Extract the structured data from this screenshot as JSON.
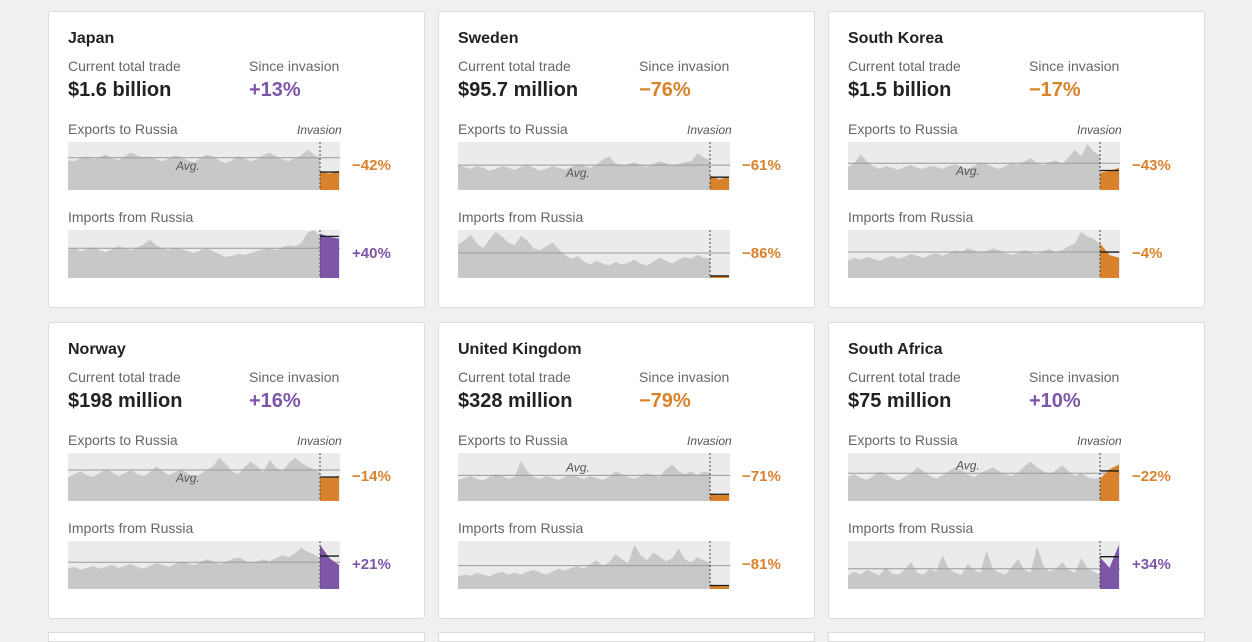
{
  "labels": {
    "current_total_trade": "Current total trade",
    "since_invasion": "Since invasion",
    "exports_to_russia": "Exports to Russia",
    "imports_from_russia": "Imports from Russia",
    "invasion": "Invasion",
    "avg": "Avg."
  },
  "colors": {
    "negative": "#d9822b",
    "positive": "#7d56a7",
    "history_area": "#c8c8c8",
    "plot_background": "#ebebeb",
    "average_line": "#9a9a9a"
  },
  "chart_data": [
    {
      "type": "area",
      "country": "Japan",
      "total_trade": "$1.6 billion",
      "since_invasion": "+13%",
      "exports": {
        "change": "−42%",
        "shape": [
          0.62,
          0.6,
          0.66,
          0.7,
          0.64,
          0.68,
          0.74,
          0.66,
          0.62,
          0.7,
          0.78,
          0.72,
          0.66,
          0.7,
          0.64,
          0.6,
          0.66,
          0.72,
          0.68,
          0.62,
          0.58,
          0.66,
          0.74,
          0.7,
          0.62,
          0.56,
          0.62,
          0.7,
          0.66,
          0.6,
          0.64,
          0.72,
          0.78,
          0.7,
          0.64,
          0.6,
          0.66,
          0.72,
          0.84,
          0.74,
          0.66
        ],
        "recent": [
          0.38,
          0.34,
          0.4
        ],
        "avg_label_side": "below"
      },
      "imports": {
        "change": "+40%",
        "shape": [
          0.58,
          0.62,
          0.56,
          0.6,
          0.64,
          0.58,
          0.54,
          0.6,
          0.66,
          0.62,
          0.58,
          0.64,
          0.7,
          0.8,
          0.68,
          0.62,
          0.58,
          0.64,
          0.6,
          0.56,
          0.52,
          0.58,
          0.62,
          0.56,
          0.5,
          0.44,
          0.46,
          0.5,
          0.48,
          0.52,
          0.56,
          0.6,
          0.62,
          0.58,
          0.64,
          0.68,
          0.66,
          0.72,
          0.94,
          1.0,
          0.88
        ],
        "recent": [
          0.92,
          0.86,
          0.82
        ]
      }
    },
    {
      "type": "area",
      "country": "Sweden",
      "total_trade": "$95.7 million",
      "since_invasion": "−76%",
      "exports": {
        "change": "−61%",
        "shape": [
          0.52,
          0.48,
          0.44,
          0.5,
          0.46,
          0.4,
          0.44,
          0.5,
          0.46,
          0.42,
          0.48,
          0.52,
          0.46,
          0.4,
          0.44,
          0.5,
          0.46,
          0.42,
          0.48,
          0.54,
          0.5,
          0.46,
          0.52,
          0.64,
          0.7,
          0.56,
          0.5,
          0.54,
          0.58,
          0.52,
          0.48,
          0.54,
          0.6,
          0.56,
          0.5,
          0.54,
          0.58,
          0.6,
          0.76,
          0.68,
          0.62
        ],
        "recent": [
          0.3,
          0.22,
          0.28
        ],
        "avg_label_side": "below"
      },
      "imports": {
        "change": "−86%",
        "shape": [
          0.7,
          0.78,
          0.9,
          0.72,
          0.62,
          0.8,
          0.96,
          0.86,
          0.74,
          0.68,
          0.88,
          0.78,
          0.62,
          0.58,
          0.66,
          0.74,
          0.6,
          0.48,
          0.4,
          0.46,
          0.34,
          0.28,
          0.36,
          0.3,
          0.26,
          0.34,
          0.28,
          0.32,
          0.38,
          0.3,
          0.26,
          0.34,
          0.42,
          0.36,
          0.3,
          0.38,
          0.44,
          0.4,
          0.48,
          0.42,
          0.4
        ],
        "recent": [
          0.04,
          0.04,
          0.05
        ]
      }
    },
    {
      "type": "area",
      "country": "South Korea",
      "total_trade": "$1.5 billion",
      "since_invasion": "−17%",
      "exports": {
        "change": "−43%",
        "shape": [
          0.48,
          0.56,
          0.74,
          0.6,
          0.5,
          0.44,
          0.5,
          0.46,
          0.42,
          0.48,
          0.52,
          0.46,
          0.44,
          0.5,
          0.48,
          0.44,
          0.5,
          0.54,
          0.48,
          0.44,
          0.5,
          0.58,
          0.54,
          0.48,
          0.44,
          0.5,
          0.56,
          0.52,
          0.6,
          0.66,
          0.56,
          0.52,
          0.58,
          0.62,
          0.54,
          0.68,
          0.84,
          0.7,
          0.96,
          0.8,
          0.72
        ],
        "recent": [
          0.36,
          0.4,
          0.46
        ],
        "avg_label_side": "below"
      },
      "imports": {
        "change": "−4%",
        "shape": [
          0.36,
          0.42,
          0.38,
          0.44,
          0.4,
          0.36,
          0.42,
          0.46,
          0.4,
          0.44,
          0.5,
          0.46,
          0.42,
          0.48,
          0.52,
          0.46,
          0.52,
          0.58,
          0.54,
          0.62,
          0.58,
          0.52,
          0.56,
          0.62,
          0.58,
          0.52,
          0.48,
          0.52,
          0.58,
          0.54,
          0.5,
          0.56,
          0.6,
          0.54,
          0.58,
          0.66,
          0.72,
          0.96,
          0.86,
          0.82,
          0.7
        ],
        "recent": [
          0.72,
          0.48,
          0.42
        ]
      }
    },
    {
      "type": "area",
      "country": "Norway",
      "total_trade": "$198 million",
      "since_invasion": "+16%",
      "exports": {
        "change": "−14%",
        "shape": [
          0.48,
          0.56,
          0.62,
          0.54,
          0.5,
          0.58,
          0.66,
          0.6,
          0.52,
          0.58,
          0.64,
          0.56,
          0.52,
          0.6,
          0.72,
          0.62,
          0.54,
          0.6,
          0.66,
          0.58,
          0.5,
          0.56,
          0.64,
          0.72,
          0.9,
          0.78,
          0.62,
          0.56,
          0.7,
          0.82,
          0.72,
          0.6,
          0.86,
          0.7,
          0.62,
          0.78,
          0.9,
          0.8,
          0.72,
          0.66,
          0.6
        ],
        "recent": [
          0.48,
          0.5,
          0.52
        ],
        "avg_label_side": "below"
      },
      "imports": {
        "change": "+21%",
        "shape": [
          0.42,
          0.46,
          0.4,
          0.44,
          0.48,
          0.42,
          0.46,
          0.5,
          0.44,
          0.48,
          0.52,
          0.46,
          0.42,
          0.48,
          0.54,
          0.5,
          0.46,
          0.52,
          0.58,
          0.54,
          0.5,
          0.56,
          0.62,
          0.58,
          0.52,
          0.56,
          0.62,
          0.66,
          0.6,
          0.54,
          0.58,
          0.62,
          0.58,
          0.64,
          0.7,
          0.66,
          0.74,
          0.86,
          0.78,
          0.72,
          0.66
        ],
        "recent": [
          0.92,
          0.64,
          0.5
        ]
      }
    },
    {
      "type": "area",
      "country": "United Kingdom",
      "total_trade": "$328 million",
      "since_invasion": "−79%",
      "exports": {
        "change": "−71%",
        "shape": [
          0.44,
          0.48,
          0.52,
          0.46,
          0.42,
          0.5,
          0.56,
          0.52,
          0.46,
          0.5,
          0.84,
          0.62,
          0.5,
          0.46,
          0.52,
          0.48,
          0.44,
          0.5,
          0.56,
          0.5,
          0.46,
          0.52,
          0.48,
          0.44,
          0.5,
          0.62,
          0.56,
          0.5,
          0.46,
          0.52,
          0.58,
          0.54,
          0.5,
          0.66,
          0.76,
          0.62,
          0.56,
          0.62,
          0.54,
          0.62,
          0.58
        ],
        "recent": [
          0.16,
          0.12,
          0.14
        ],
        "avg_label_side": "above"
      },
      "imports": {
        "change": "−81%",
        "shape": [
          0.26,
          0.3,
          0.28,
          0.34,
          0.3,
          0.26,
          0.32,
          0.36,
          0.3,
          0.34,
          0.3,
          0.36,
          0.4,
          0.34,
          0.3,
          0.36,
          0.42,
          0.38,
          0.44,
          0.48,
          0.42,
          0.52,
          0.6,
          0.48,
          0.56,
          0.72,
          0.62,
          0.54,
          0.92,
          0.7,
          0.6,
          0.76,
          0.68,
          0.58,
          0.64,
          0.84,
          0.62,
          0.56,
          0.66,
          0.6,
          0.54
        ],
        "recent": [
          0.1,
          0.06,
          0.06
        ]
      }
    },
    {
      "type": "area",
      "country": "South Africa",
      "total_trade": "$75 million",
      "since_invasion": "+10%",
      "exports": {
        "change": "−22%",
        "shape": [
          0.5,
          0.56,
          0.48,
          0.44,
          0.52,
          0.62,
          0.56,
          0.48,
          0.42,
          0.5,
          0.58,
          0.7,
          0.62,
          0.52,
          0.46,
          0.54,
          0.62,
          0.7,
          0.64,
          0.56,
          0.5,
          0.58,
          0.64,
          0.7,
          0.62,
          0.56,
          0.52,
          0.6,
          0.72,
          0.82,
          0.7,
          0.62,
          0.56,
          0.64,
          0.74,
          0.62,
          0.52,
          0.58,
          0.5,
          0.46,
          0.48
        ],
        "recent": [
          0.46,
          0.66,
          0.76
        ],
        "avg_label_side": "above"
      },
      "imports": {
        "change": "+34%",
        "shape": [
          0.28,
          0.36,
          0.3,
          0.4,
          0.34,
          0.28,
          0.46,
          0.32,
          0.3,
          0.4,
          0.56,
          0.34,
          0.3,
          0.42,
          0.36,
          0.7,
          0.42,
          0.34,
          0.3,
          0.52,
          0.4,
          0.34,
          0.8,
          0.42,
          0.34,
          0.3,
          0.46,
          0.62,
          0.4,
          0.34,
          0.9,
          0.48,
          0.36,
          0.42,
          0.56,
          0.4,
          0.34,
          0.64,
          0.44,
          0.36,
          0.3
        ],
        "recent": [
          0.66,
          0.44,
          0.92
        ]
      }
    }
  ]
}
